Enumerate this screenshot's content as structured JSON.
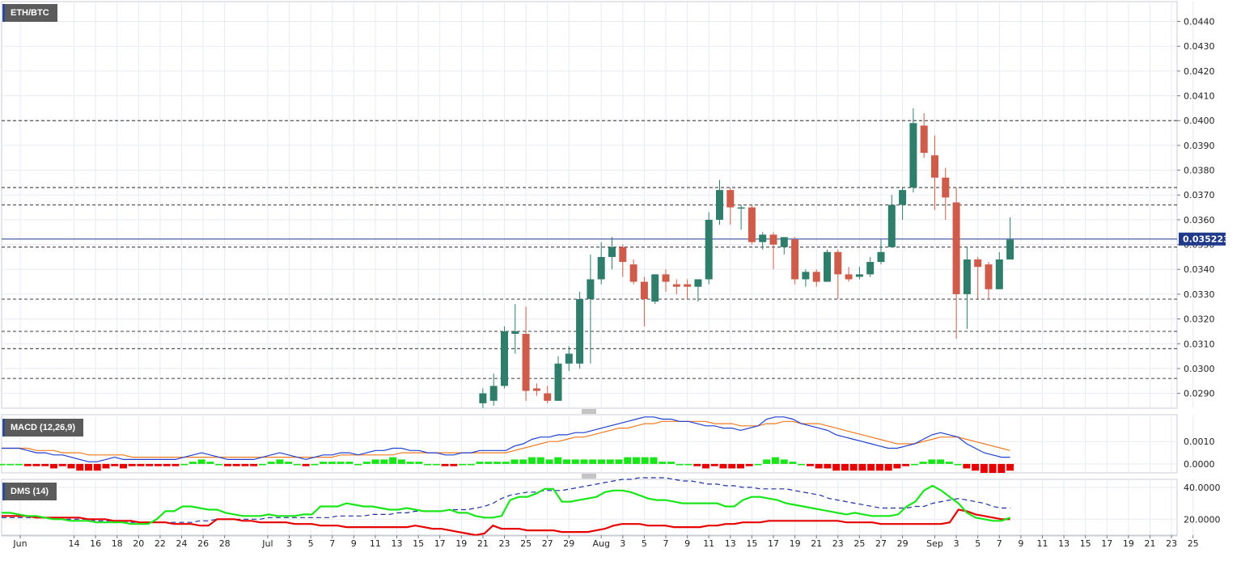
{
  "panels": {
    "price_label": "ETH/BTC",
    "macd_label": "MACD (12,26,9)",
    "dms_label": "DMS (14)"
  },
  "colors": {
    "bull": "#2f7d6b",
    "bear": "#cf5b4a",
    "grid": "#e8ebf2",
    "level_line": "#555555",
    "current_price": "#1f3a8a",
    "macd_line": "#1f3fcf",
    "signal_line": "#f07a20",
    "hist_pos": "#19e619",
    "hist_neg": "#e60000",
    "di_plus": "#19e619",
    "di_minus": "#e60000",
    "adx": "#1f2fa0"
  },
  "chart_data": [
    {
      "type": "candlestick",
      "title": "ETH/BTC",
      "ylim": [
        0.0284,
        0.0448
      ],
      "yticks": [
        "0.0290",
        "0.0300",
        "0.0310",
        "0.0320",
        "0.0330",
        "0.0340",
        "0.0350",
        "0.0360",
        "0.0370",
        "0.0380",
        "0.0390",
        "0.0400",
        "0.0410",
        "0.0420",
        "0.0430",
        "0.0440"
      ],
      "current_price": "0.035223",
      "horizontal_levels": [
        0.04,
        0.0373,
        0.0366,
        0.0349,
        0.0328,
        0.0315,
        0.0308,
        0.0296
      ],
      "candles": [
        {
          "x": "Jul 22",
          "o": 0.0286,
          "h": 0.0292,
          "l": 0.0284,
          "c": 0.029
        },
        {
          "x": "Jul 23",
          "o": 0.0287,
          "h": 0.0298,
          "l": 0.0285,
          "c": 0.0293
        },
        {
          "x": "Jul 24",
          "o": 0.0293,
          "h": 0.0317,
          "l": 0.0292,
          "c": 0.0315
        },
        {
          "x": "Jul 25",
          "o": 0.0314,
          "h": 0.0326,
          "l": 0.0306,
          "c": 0.0315
        },
        {
          "x": "Jul 26",
          "o": 0.0314,
          "h": 0.0325,
          "l": 0.0287,
          "c": 0.0291
        },
        {
          "x": "Jul 27",
          "o": 0.0292,
          "h": 0.0294,
          "l": 0.0289,
          "c": 0.0291
        },
        {
          "x": "Jul 28",
          "o": 0.029,
          "h": 0.0293,
          "l": 0.0286,
          "c": 0.0287
        },
        {
          "x": "Jul 29",
          "o": 0.0287,
          "h": 0.0305,
          "l": 0.0287,
          "c": 0.0302
        },
        {
          "x": "Jul 30",
          "o": 0.0302,
          "h": 0.0309,
          "l": 0.0299,
          "c": 0.0306
        },
        {
          "x": "Jul 31",
          "o": 0.0302,
          "h": 0.0331,
          "l": 0.03,
          "c": 0.0328
        },
        {
          "x": "Aug 1",
          "o": 0.0328,
          "h": 0.0346,
          "l": 0.0302,
          "c": 0.0336
        },
        {
          "x": "Aug 2",
          "o": 0.0336,
          "h": 0.0351,
          "l": 0.0334,
          "c": 0.0345
        },
        {
          "x": "Aug 3",
          "o": 0.0345,
          "h": 0.0353,
          "l": 0.034,
          "c": 0.0349
        },
        {
          "x": "Aug 4",
          "o": 0.0349,
          "h": 0.035,
          "l": 0.0337,
          "c": 0.0343
        },
        {
          "x": "Aug 5",
          "o": 0.0342,
          "h": 0.0344,
          "l": 0.0334,
          "c": 0.0335
        },
        {
          "x": "Aug 6",
          "o": 0.0335,
          "h": 0.0337,
          "l": 0.0317,
          "c": 0.0328
        },
        {
          "x": "Aug 7",
          "o": 0.0327,
          "h": 0.0338,
          "l": 0.0326,
          "c": 0.0338
        },
        {
          "x": "Aug 8",
          "o": 0.0338,
          "h": 0.034,
          "l": 0.0331,
          "c": 0.0335
        },
        {
          "x": "Aug 9",
          "o": 0.0334,
          "h": 0.0336,
          "l": 0.033,
          "c": 0.0333
        },
        {
          "x": "Aug 10",
          "o": 0.0334,
          "h": 0.0336,
          "l": 0.0328,
          "c": 0.0333
        },
        {
          "x": "Aug 11",
          "o": 0.0333,
          "h": 0.0336,
          "l": 0.0327,
          "c": 0.0336
        },
        {
          "x": "Aug 12",
          "o": 0.0336,
          "h": 0.0363,
          "l": 0.0334,
          "c": 0.036
        },
        {
          "x": "Aug 13",
          "o": 0.036,
          "h": 0.0376,
          "l": 0.0358,
          "c": 0.0372
        },
        {
          "x": "Aug 14",
          "o": 0.0372,
          "h": 0.0373,
          "l": 0.0358,
          "c": 0.0365
        },
        {
          "x": "Aug 15",
          "o": 0.0365,
          "h": 0.0366,
          "l": 0.0356,
          "c": 0.0365
        },
        {
          "x": "Aug 16",
          "o": 0.0365,
          "h": 0.0366,
          "l": 0.035,
          "c": 0.0351
        },
        {
          "x": "Aug 17",
          "o": 0.0351,
          "h": 0.0355,
          "l": 0.0348,
          "c": 0.0354
        },
        {
          "x": "Aug 18",
          "o": 0.0354,
          "h": 0.0355,
          "l": 0.034,
          "c": 0.035
        },
        {
          "x": "Aug 19",
          "o": 0.0349,
          "h": 0.0353,
          "l": 0.0346,
          "c": 0.0353
        },
        {
          "x": "Aug 20",
          "o": 0.0352,
          "h": 0.0353,
          "l": 0.0334,
          "c": 0.0336
        },
        {
          "x": "Aug 21",
          "o": 0.0336,
          "h": 0.034,
          "l": 0.0333,
          "c": 0.0339
        },
        {
          "x": "Aug 22",
          "o": 0.0339,
          "h": 0.034,
          "l": 0.0333,
          "c": 0.0335
        },
        {
          "x": "Aug 23",
          "o": 0.0335,
          "h": 0.0348,
          "l": 0.0335,
          "c": 0.0347
        },
        {
          "x": "Aug 24",
          "o": 0.0347,
          "h": 0.0348,
          "l": 0.0328,
          "c": 0.0338
        },
        {
          "x": "Aug 25",
          "o": 0.0338,
          "h": 0.0341,
          "l": 0.0335,
          "c": 0.0336
        },
        {
          "x": "Aug 26",
          "o": 0.0337,
          "h": 0.0341,
          "l": 0.0336,
          "c": 0.0338
        },
        {
          "x": "Aug 27",
          "o": 0.0338,
          "h": 0.0345,
          "l": 0.0337,
          "c": 0.0343
        },
        {
          "x": "Aug 28",
          "o": 0.0343,
          "h": 0.0352,
          "l": 0.0342,
          "c": 0.0347
        },
        {
          "x": "Aug 29",
          "o": 0.0349,
          "h": 0.037,
          "l": 0.0349,
          "c": 0.0366
        },
        {
          "x": "Aug 30",
          "o": 0.0366,
          "h": 0.0373,
          "l": 0.036,
          "c": 0.0372
        },
        {
          "x": "Aug 31",
          "o": 0.0373,
          "h": 0.0405,
          "l": 0.0371,
          "c": 0.0399
        },
        {
          "x": "Sep 1",
          "o": 0.0398,
          "h": 0.0403,
          "l": 0.0385,
          "c": 0.0387
        },
        {
          "x": "Sep 2",
          "o": 0.0386,
          "h": 0.0394,
          "l": 0.0364,
          "c": 0.0377
        },
        {
          "x": "Sep 3",
          "o": 0.0377,
          "h": 0.0381,
          "l": 0.036,
          "c": 0.0369
        },
        {
          "x": "Sep 4",
          "o": 0.0367,
          "h": 0.0373,
          "l": 0.0312,
          "c": 0.033
        },
        {
          "x": "Sep 5",
          "o": 0.033,
          "h": 0.0349,
          "l": 0.0316,
          "c": 0.0344
        },
        {
          "x": "Sep 6",
          "o": 0.0344,
          "h": 0.0345,
          "l": 0.0328,
          "c": 0.0341
        },
        {
          "x": "Sep 7",
          "o": 0.0342,
          "h": 0.0343,
          "l": 0.0328,
          "c": 0.0332
        },
        {
          "x": "Sep 8",
          "o": 0.0332,
          "h": 0.0347,
          "l": 0.0332,
          "c": 0.0344
        },
        {
          "x": "Sep 9",
          "o": 0.0344,
          "h": 0.0361,
          "l": 0.0344,
          "c": 0.0352
        }
      ]
    },
    {
      "type": "macd",
      "title": "MACD (12,26,9)",
      "ylim": [
        -0.0004,
        0.0022
      ],
      "yticks": [
        "0.0000",
        "0.0010"
      ],
      "macd": [
        0.0007,
        0.0007,
        0.0007,
        0.0006,
        0.0005,
        0.0005,
        0.0004,
        0.0004,
        0.0003,
        0.0002,
        0.0001,
        0.0001,
        0.0002,
        0.0003,
        0.0002,
        0.0002,
        0.0002,
        0.0002,
        0.0002,
        0.0002,
        0.0002,
        0.0003,
        0.0004,
        0.0005,
        0.0004,
        0.0003,
        0.0002,
        0.0002,
        0.0002,
        0.0002,
        0.0003,
        0.0004,
        0.0005,
        0.0004,
        0.0003,
        0.0002,
        0.0003,
        0.0004,
        0.0004,
        0.0005,
        0.0005,
        0.0004,
        0.0005,
        0.0006,
        0.0006,
        0.0007,
        0.0007,
        0.0006,
        0.0006,
        0.0005,
        0.0005,
        0.0004,
        0.0004,
        0.0005,
        0.0005,
        0.0006,
        0.0006,
        0.0006,
        0.0006,
        0.0008,
        0.0009,
        0.0011,
        0.0012,
        0.0012,
        0.0013,
        0.0013,
        0.0014,
        0.0014,
        0.0015,
        0.0016,
        0.0017,
        0.0018,
        0.0019,
        0.002,
        0.0021,
        0.0021,
        0.002,
        0.002,
        0.0019,
        0.0019,
        0.0018,
        0.0017,
        0.0017,
        0.0016,
        0.0016,
        0.0015,
        0.0016,
        0.0017,
        0.002,
        0.0021,
        0.0021,
        0.002,
        0.0018,
        0.0017,
        0.0016,
        0.0015,
        0.0013,
        0.0012,
        0.0011,
        0.001,
        0.0009,
        0.0008,
        0.0007,
        0.0007,
        0.0008,
        0.0009,
        0.0011,
        0.0013,
        0.0014,
        0.0013,
        0.0012,
        0.0009,
        0.0007,
        0.0005,
        0.0004,
        0.0003,
        0.0003
      ],
      "signal": [
        0.0007,
        0.0007,
        0.0007,
        0.0007,
        0.0006,
        0.0006,
        0.0006,
        0.0005,
        0.0005,
        0.0005,
        0.0004,
        0.0004,
        0.0004,
        0.0004,
        0.0004,
        0.0003,
        0.0003,
        0.0003,
        0.0003,
        0.0003,
        0.0003,
        0.0003,
        0.0003,
        0.0003,
        0.0003,
        0.0003,
        0.0003,
        0.0003,
        0.0003,
        0.0003,
        0.0003,
        0.0003,
        0.0003,
        0.0003,
        0.0003,
        0.0003,
        0.0003,
        0.0003,
        0.0003,
        0.0004,
        0.0004,
        0.0004,
        0.0004,
        0.0004,
        0.0004,
        0.0004,
        0.0005,
        0.0005,
        0.0005,
        0.0005,
        0.0005,
        0.0005,
        0.0005,
        0.0005,
        0.0005,
        0.0005,
        0.0005,
        0.0005,
        0.0005,
        0.0006,
        0.0007,
        0.0008,
        0.0009,
        0.001,
        0.001,
        0.0011,
        0.0012,
        0.0012,
        0.0013,
        0.0014,
        0.0015,
        0.0016,
        0.0016,
        0.0017,
        0.0018,
        0.0018,
        0.0019,
        0.0019,
        0.0019,
        0.0019,
        0.0019,
        0.0019,
        0.0018,
        0.0018,
        0.0018,
        0.0017,
        0.0017,
        0.0017,
        0.0018,
        0.0018,
        0.0019,
        0.0019,
        0.0018,
        0.0018,
        0.0018,
        0.0017,
        0.0016,
        0.0015,
        0.0014,
        0.0013,
        0.0012,
        0.0011,
        0.001,
        0.0009,
        0.0009,
        0.0009,
        0.001,
        0.0011,
        0.0012,
        0.0012,
        0.0012,
        0.0011,
        0.001,
        0.0009,
        0.0008,
        0.0007,
        0.0006
      ]
    },
    {
      "type": "line",
      "title": "DMS (14)",
      "ylim": [
        10,
        45
      ],
      "yticks": [
        "20.0000",
        "40.0000"
      ],
      "di_plus": [
        24,
        24,
        23,
        22,
        22,
        21,
        20,
        20,
        19,
        19,
        19,
        18,
        18,
        18,
        18,
        17,
        17,
        17,
        20,
        25,
        25,
        28,
        28,
        27,
        26,
        26,
        24,
        23,
        22,
        22,
        22,
        23,
        22,
        22,
        22,
        23,
        23,
        28,
        28,
        28,
        30,
        29,
        28,
        28,
        27,
        26,
        26,
        27,
        26,
        25,
        25,
        25,
        26,
        24,
        24,
        22,
        21,
        21,
        22,
        32,
        34,
        34,
        36,
        39,
        39,
        31,
        31,
        32,
        33,
        34,
        37,
        38,
        38,
        37,
        35,
        33,
        32,
        32,
        31,
        30,
        30,
        30,
        30,
        30,
        28,
        28,
        32,
        34,
        34,
        33,
        32,
        30,
        29,
        28,
        27,
        26,
        25,
        24,
        23,
        24,
        23,
        22,
        22,
        22,
        23,
        28,
        31,
        38,
        41,
        38,
        34,
        30,
        24,
        21,
        20,
        19,
        19,
        21
      ],
      "di_minus": [
        22,
        22,
        22,
        22,
        21,
        21,
        21,
        21,
        21,
        21,
        20,
        20,
        20,
        19,
        19,
        19,
        18,
        18,
        18,
        18,
        17,
        17,
        17,
        16,
        16,
        20,
        20,
        20,
        19,
        19,
        18,
        18,
        18,
        18,
        17,
        17,
        17,
        16,
        16,
        16,
        15,
        15,
        15,
        15,
        15,
        15,
        15,
        15,
        16,
        15,
        14,
        14,
        13,
        12,
        11,
        10,
        11,
        16,
        14,
        14,
        14,
        13,
        13,
        13,
        13,
        12,
        12,
        12,
        12,
        13,
        14,
        16,
        17,
        17,
        17,
        16,
        16,
        16,
        15,
        15,
        15,
        15,
        16,
        16,
        17,
        17,
        18,
        18,
        18,
        19,
        19,
        19,
        19,
        19,
        19,
        19,
        19,
        19,
        18,
        18,
        18,
        18,
        17,
        17,
        17,
        17,
        17,
        17,
        17,
        17,
        18,
        26,
        25,
        23,
        22,
        21,
        20,
        20
      ],
      "adx": [
        21,
        21,
        21,
        21,
        21,
        21,
        21,
        20,
        20,
        20,
        20,
        19,
        19,
        19,
        19,
        18,
        18,
        18,
        18,
        18,
        18,
        18,
        18,
        19,
        19,
        20,
        20,
        20,
        20,
        20,
        20,
        21,
        21,
        21,
        21,
        21,
        21,
        21,
        21,
        22,
        22,
        22,
        22,
        23,
        23,
        23,
        24,
        24,
        25,
        25,
        25,
        25,
        26,
        26,
        26,
        27,
        28,
        30,
        33,
        35,
        36,
        37,
        37,
        38,
        38,
        38,
        39,
        40,
        41,
        42,
        43,
        44,
        45,
        45,
        46,
        46,
        46,
        46,
        45,
        44,
        44,
        43,
        42,
        42,
        41,
        41,
        40,
        40,
        39,
        39,
        39,
        39,
        38,
        37,
        36,
        35,
        33,
        32,
        31,
        30,
        29,
        28,
        27,
        27,
        27,
        27,
        28,
        28,
        30,
        31,
        32,
        33,
        32,
        31,
        30,
        28,
        27,
        27
      ]
    }
  ],
  "x_axis": {
    "labels": [
      {
        "text": "Jun",
        "i": 0
      },
      {
        "text": "14",
        "i": 5
      },
      {
        "text": "16",
        "i": 7
      },
      {
        "text": "18",
        "i": 9
      },
      {
        "text": "20",
        "i": 11
      },
      {
        "text": "22",
        "i": 13
      },
      {
        "text": "24",
        "i": 15
      },
      {
        "text": "26",
        "i": 17
      },
      {
        "text": "28",
        "i": 19
      },
      {
        "text": "Jul",
        "i": 23
      },
      {
        "text": "3",
        "i": 25
      },
      {
        "text": "5",
        "i": 27
      },
      {
        "text": "7",
        "i": 29
      },
      {
        "text": "9",
        "i": 31
      },
      {
        "text": "11",
        "i": 33
      },
      {
        "text": "13",
        "i": 35
      },
      {
        "text": "15",
        "i": 37
      },
      {
        "text": "17",
        "i": 39
      },
      {
        "text": "19",
        "i": 41
      },
      {
        "text": "21",
        "i": 43
      },
      {
        "text": "23",
        "i": 45
      },
      {
        "text": "25",
        "i": 47
      },
      {
        "text": "27",
        "i": 49
      },
      {
        "text": "29",
        "i": 51
      },
      {
        "text": "Aug",
        "i": 54
      },
      {
        "text": "3",
        "i": 56
      },
      {
        "text": "5",
        "i": 58
      },
      {
        "text": "7",
        "i": 60
      },
      {
        "text": "9",
        "i": 62
      },
      {
        "text": "11",
        "i": 64
      },
      {
        "text": "13",
        "i": 66
      },
      {
        "text": "15",
        "i": 68
      },
      {
        "text": "17",
        "i": 70
      },
      {
        "text": "19",
        "i": 72
      },
      {
        "text": "21",
        "i": 74
      },
      {
        "text": "23",
        "i": 76
      },
      {
        "text": "25",
        "i": 78
      },
      {
        "text": "27",
        "i": 80
      },
      {
        "text": "29",
        "i": 82
      },
      {
        "text": "Sep",
        "i": 85
      },
      {
        "text": "3",
        "i": 87
      },
      {
        "text": "5",
        "i": 89
      },
      {
        "text": "7",
        "i": 91
      },
      {
        "text": "9",
        "i": 93
      },
      {
        "text": "11",
        "i": 95
      },
      {
        "text": "13",
        "i": 97
      },
      {
        "text": "15",
        "i": 99
      },
      {
        "text": "17",
        "i": 101
      },
      {
        "text": "19",
        "i": 103
      },
      {
        "text": "21",
        "i": 105
      },
      {
        "text": "23",
        "i": 107
      },
      {
        "text": "25",
        "i": 109
      }
    ]
  }
}
